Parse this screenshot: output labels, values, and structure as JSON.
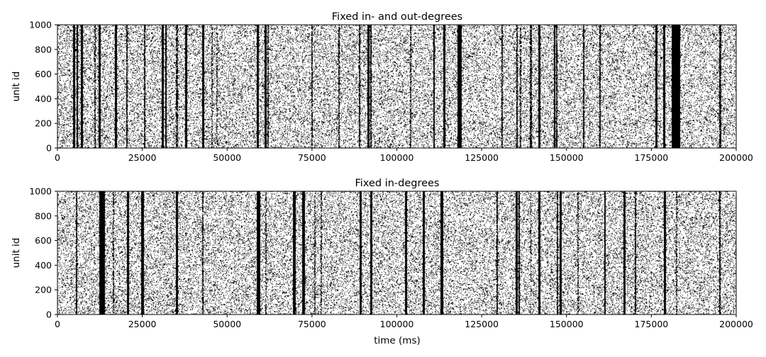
{
  "chart_data": [
    {
      "type": "scatter",
      "style": "raster",
      "title": "Fixed in- and out-degrees",
      "xlabel": "",
      "ylabel": "unit id",
      "xlim": [
        0,
        200000
      ],
      "ylim": [
        0,
        1000
      ],
      "xticks": [
        0,
        25000,
        50000,
        75000,
        100000,
        125000,
        150000,
        175000,
        200000
      ],
      "yticks": [
        0,
        200,
        400,
        600,
        800,
        1000
      ],
      "xtick_labels": [
        "0",
        "25000",
        "50000",
        "75000",
        "100000",
        "125000",
        "150000",
        "175000",
        "200000"
      ],
      "ytick_labels": [
        "0",
        "200",
        "400",
        "600",
        "800",
        "1000"
      ],
      "background_spike_density": 0.2,
      "bursts": [
        {
          "t": 5000,
          "w": 400,
          "d": 1.0
        },
        {
          "t": 5800,
          "w": 300,
          "d": 1.0
        },
        {
          "t": 7200,
          "w": 300,
          "d": 1.0
        },
        {
          "t": 11000,
          "w": 200,
          "d": 0.7
        },
        {
          "t": 12500,
          "w": 350,
          "d": 1.0
        },
        {
          "t": 17200,
          "w": 450,
          "d": 1.0
        },
        {
          "t": 20500,
          "w": 300,
          "d": 0.9
        },
        {
          "t": 25700,
          "w": 250,
          "d": 0.9
        },
        {
          "t": 31000,
          "w": 300,
          "d": 1.0
        },
        {
          "t": 32000,
          "w": 350,
          "d": 1.0
        },
        {
          "t": 35200,
          "w": 300,
          "d": 0.8
        },
        {
          "t": 38000,
          "w": 350,
          "d": 1.0
        },
        {
          "t": 43000,
          "w": 400,
          "d": 1.0
        },
        {
          "t": 45500,
          "w": 200,
          "d": 0.5
        },
        {
          "t": 47000,
          "w": 200,
          "d": 0.5
        },
        {
          "t": 59000,
          "w": 300,
          "d": 1.0
        },
        {
          "t": 61300,
          "w": 500,
          "d": 1.0
        },
        {
          "t": 62000,
          "w": 200,
          "d": 0.7
        },
        {
          "t": 75000,
          "w": 250,
          "d": 0.8
        },
        {
          "t": 83000,
          "w": 250,
          "d": 0.8
        },
        {
          "t": 89000,
          "w": 250,
          "d": 0.9
        },
        {
          "t": 91700,
          "w": 350,
          "d": 1.0
        },
        {
          "t": 92300,
          "w": 250,
          "d": 0.9
        },
        {
          "t": 104000,
          "w": 250,
          "d": 0.7
        },
        {
          "t": 111000,
          "w": 300,
          "d": 1.0
        },
        {
          "t": 114000,
          "w": 300,
          "d": 1.0
        },
        {
          "t": 118500,
          "w": 1200,
          "d": 1.0
        },
        {
          "t": 131000,
          "w": 250,
          "d": 0.8
        },
        {
          "t": 135500,
          "w": 250,
          "d": 0.9
        },
        {
          "t": 136500,
          "w": 200,
          "d": 0.7
        },
        {
          "t": 139500,
          "w": 250,
          "d": 0.8
        },
        {
          "t": 142000,
          "w": 350,
          "d": 1.0
        },
        {
          "t": 146500,
          "w": 350,
          "d": 1.0
        },
        {
          "t": 147200,
          "w": 250,
          "d": 0.9
        },
        {
          "t": 155000,
          "w": 250,
          "d": 0.9
        },
        {
          "t": 159800,
          "w": 250,
          "d": 0.9
        },
        {
          "t": 176500,
          "w": 350,
          "d": 1.0
        },
        {
          "t": 178800,
          "w": 350,
          "d": 1.0
        },
        {
          "t": 182200,
          "w": 2200,
          "d": 1.0
        },
        {
          "t": 195300,
          "w": 250,
          "d": 0.9
        }
      ]
    },
    {
      "type": "scatter",
      "style": "raster",
      "title": "Fixed in-degrees",
      "xlabel": "time (ms)",
      "ylabel": "unit id",
      "xlim": [
        0,
        200000
      ],
      "ylim": [
        0,
        1000
      ],
      "xticks": [
        0,
        25000,
        50000,
        75000,
        100000,
        125000,
        150000,
        175000,
        200000
      ],
      "yticks": [
        0,
        200,
        400,
        600,
        800,
        1000
      ],
      "xtick_labels": [
        "0",
        "25000",
        "50000",
        "75000",
        "100000",
        "125000",
        "150000",
        "175000",
        "200000"
      ],
      "ytick_labels": [
        "0",
        "200",
        "400",
        "600",
        "800",
        "1000"
      ],
      "background_spike_density": 0.2,
      "bursts": [
        {
          "t": 5700,
          "w": 300,
          "d": 0.9
        },
        {
          "t": 13200,
          "w": 1500,
          "d": 1.0
        },
        {
          "t": 16500,
          "w": 200,
          "d": 0.6
        },
        {
          "t": 20800,
          "w": 400,
          "d": 1.0
        },
        {
          "t": 25000,
          "w": 600,
          "d": 1.0
        },
        {
          "t": 35200,
          "w": 400,
          "d": 1.0
        },
        {
          "t": 42800,
          "w": 250,
          "d": 0.8
        },
        {
          "t": 59200,
          "w": 900,
          "d": 1.0
        },
        {
          "t": 61500,
          "w": 200,
          "d": 0.6
        },
        {
          "t": 69800,
          "w": 500,
          "d": 1.0
        },
        {
          "t": 72500,
          "w": 500,
          "d": 1.0
        },
        {
          "t": 75800,
          "w": 200,
          "d": 0.6
        },
        {
          "t": 77800,
          "w": 200,
          "d": 0.6
        },
        {
          "t": 89300,
          "w": 400,
          "d": 1.0
        },
        {
          "t": 92500,
          "w": 500,
          "d": 1.0
        },
        {
          "t": 102700,
          "w": 400,
          "d": 1.0
        },
        {
          "t": 108000,
          "w": 400,
          "d": 1.0
        },
        {
          "t": 113300,
          "w": 500,
          "d": 1.0
        },
        {
          "t": 129500,
          "w": 250,
          "d": 0.9
        },
        {
          "t": 135300,
          "w": 450,
          "d": 1.0
        },
        {
          "t": 136100,
          "w": 250,
          "d": 0.9
        },
        {
          "t": 139500,
          "w": 200,
          "d": 0.6
        },
        {
          "t": 142000,
          "w": 400,
          "d": 1.0
        },
        {
          "t": 147300,
          "w": 250,
          "d": 0.9
        },
        {
          "t": 148300,
          "w": 400,
          "d": 1.0
        },
        {
          "t": 153300,
          "w": 200,
          "d": 0.6
        },
        {
          "t": 161300,
          "w": 300,
          "d": 1.0
        },
        {
          "t": 167000,
          "w": 400,
          "d": 1.0
        },
        {
          "t": 170400,
          "w": 250,
          "d": 0.9
        },
        {
          "t": 179000,
          "w": 550,
          "d": 1.0
        },
        {
          "t": 182500,
          "w": 200,
          "d": 0.6
        },
        {
          "t": 195200,
          "w": 250,
          "d": 0.9
        }
      ]
    }
  ]
}
